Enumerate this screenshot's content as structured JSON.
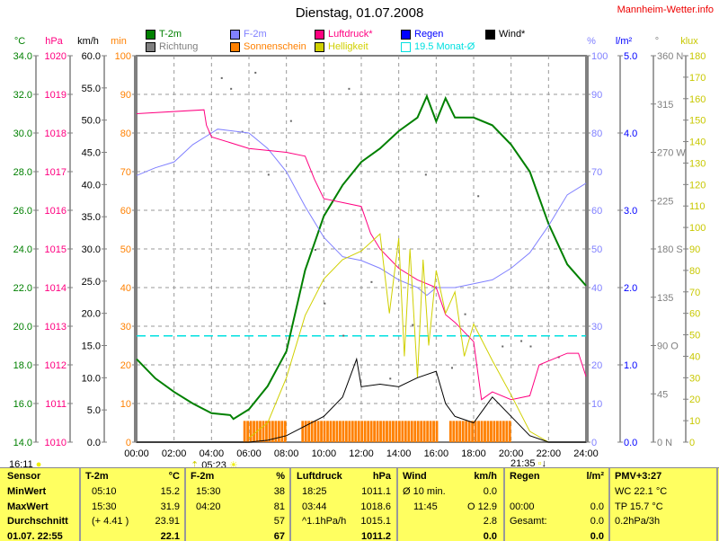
{
  "header": {
    "title": "Dienstag, 01.07.2008",
    "brand": "Mannheim-Wetter.info"
  },
  "legend": [
    {
      "label": "T-2m",
      "color": "#008000"
    },
    {
      "label": "F-2m",
      "color": "#8080ff"
    },
    {
      "label": "Luftdruck*",
      "color": "#ff0080"
    },
    {
      "label": "Regen",
      "color": "#0000ff"
    },
    {
      "label": "Wind*",
      "color": "#000000"
    },
    {
      "label": "Richtung",
      "color": "#808080"
    },
    {
      "label": "Sonnenschein",
      "color": "#ff8000"
    },
    {
      "label": "Helligkeit",
      "color": "#d0d000"
    },
    {
      "label": "19.5 Monat-Ø",
      "color": "#00e0e0"
    }
  ],
  "sun": {
    "left_time": "16:11",
    "sunrise": "05:23",
    "sunset": "21:35"
  },
  "chart_data": {
    "type": "line",
    "title": "Dienstag, 01.07.2008",
    "x_ticks": [
      "00:00",
      "02:00",
      "04:00",
      "06:00",
      "08:00",
      "10:00",
      "12:00",
      "14:00",
      "16:00",
      "18:00",
      "20:00",
      "22:00",
      "24:00"
    ],
    "axes": [
      {
        "unit": "°C",
        "ticks": [
          "34.0",
          "32.0",
          "30.0",
          "28.0",
          "26.0",
          "24.0",
          "22.0",
          "20.0",
          "18.0",
          "16.0",
          "14.0"
        ],
        "range": [
          14,
          34
        ],
        "color": "#008000"
      },
      {
        "unit": "hPa",
        "ticks": [
          "1020",
          "1019",
          "1018",
          "1017",
          "1016",
          "1015",
          "1014",
          "1013",
          "1012",
          "1011",
          "1010"
        ],
        "range": [
          1010,
          1020
        ],
        "color": "#ff0080"
      },
      {
        "unit": "km/h",
        "ticks": [
          "60.0",
          "55.0",
          "50.0",
          "45.0",
          "40.0",
          "35.0",
          "30.0",
          "25.0",
          "20.0",
          "15.0",
          "10.0",
          "5.0",
          "0.0"
        ],
        "range": [
          0,
          60
        ],
        "color": "#000000"
      },
      {
        "unit": "min",
        "ticks": [
          "100",
          "90",
          "80",
          "70",
          "60",
          "50",
          "40",
          "30",
          "20",
          "10",
          "0"
        ],
        "range": [
          0,
          100
        ],
        "color": "#ff8000"
      },
      {
        "unit": "%",
        "ticks": [
          "100",
          "90",
          "80",
          "70",
          "60",
          "50",
          "40",
          "30",
          "20",
          "10",
          "0"
        ],
        "range": [
          0,
          100
        ],
        "color": "#8080ff"
      },
      {
        "unit": "l/m²",
        "ticks": [
          "5.0",
          "4.0",
          "3.0",
          "2.0",
          "1.0",
          "0.0"
        ],
        "range": [
          0,
          5
        ],
        "color": "#0000ff"
      },
      {
        "unit": "°",
        "ticks": [
          "360 N",
          "315",
          "270 W",
          "225",
          "180 S",
          "135",
          "90  O",
          "45",
          "0    N"
        ],
        "range": [
          0,
          360
        ],
        "color": "#808080"
      },
      {
        "unit": "klux",
        "ticks": [
          "180",
          "170",
          "160",
          "150",
          "140",
          "130",
          "120",
          "110",
          "100",
          "90",
          "80",
          "70",
          "60",
          "50",
          "40",
          "30",
          "20",
          "10",
          "0"
        ],
        "range": [
          0,
          180
        ],
        "color": "#c8c800"
      }
    ],
    "series": [
      {
        "name": "T-2m",
        "axis": 0,
        "x": [
          0,
          1,
          2,
          3,
          4,
          5,
          5.17,
          6,
          7,
          8,
          9,
          10,
          11,
          12,
          13,
          14,
          15,
          15.5,
          16,
          16.5,
          17,
          18,
          19,
          20,
          21,
          22,
          23,
          24
        ],
        "y": [
          18.3,
          17.3,
          16.6,
          16.0,
          15.5,
          15.4,
          15.2,
          15.7,
          16.9,
          18.7,
          22.9,
          25.7,
          27.3,
          28.5,
          29.2,
          30.1,
          30.8,
          31.9,
          30.6,
          31.8,
          30.8,
          30.8,
          30.4,
          29.4,
          28.0,
          25.3,
          23.2,
          22.1
        ]
      },
      {
        "name": "F-2m",
        "axis": 4,
        "x": [
          0,
          1,
          2,
          3,
          4,
          4.33,
          6,
          7,
          8,
          9,
          10,
          11,
          12,
          13,
          14,
          15,
          15.5,
          16,
          17,
          18,
          19,
          20,
          21,
          22,
          23,
          24
        ],
        "y": [
          69,
          71,
          72.5,
          77,
          80,
          81,
          80,
          76,
          70,
          61,
          53,
          48,
          47,
          45,
          42,
          40,
          38,
          40,
          40,
          41,
          42,
          45,
          49,
          56,
          64,
          67
        ]
      },
      {
        "name": "Luftdruck*",
        "axis": 1,
        "x": [
          0,
          3.6,
          3.73,
          4,
          6,
          8,
          9,
          9.5,
          10,
          11,
          12,
          12.5,
          13,
          14,
          15,
          16,
          16.5,
          17,
          18,
          18.42,
          19,
          20,
          21,
          21.5,
          22,
          23,
          23.6,
          24
        ],
        "y": [
          1018.5,
          1018.6,
          1018.2,
          1017.9,
          1017.6,
          1017.5,
          1017.4,
          1016.8,
          1016.3,
          1016.2,
          1016.1,
          1015.4,
          1015.0,
          1014.5,
          1014.2,
          1014.0,
          1013.3,
          1013.1,
          1012.6,
          1011.1,
          1011.3,
          1011.1,
          1011.2,
          1012.0,
          1012.1,
          1012.3,
          1012.3,
          1011.7
        ]
      },
      {
        "name": "Helligkeit",
        "axis": 7,
        "x": [
          6,
          7,
          8,
          9,
          10,
          11,
          12,
          13,
          13.5,
          14,
          14.3,
          14.6,
          15,
          15.3,
          15.6,
          16,
          16.5,
          17,
          17.5,
          18,
          19,
          20,
          21,
          22,
          24
        ],
        "y": [
          2,
          9,
          30,
          59,
          76,
          85,
          89,
          97,
          60,
          95,
          40,
          90,
          30,
          85,
          45,
          80,
          60,
          70,
          40,
          55,
          38,
          22,
          5,
          0,
          0
        ]
      },
      {
        "name": "Wind*",
        "axis": 2,
        "x": [
          0,
          6,
          7,
          8,
          9,
          10,
          11,
          11.75,
          12,
          13,
          14,
          15,
          16,
          16.5,
          17,
          18,
          19,
          20,
          21,
          22,
          24
        ],
        "y": [
          0,
          0,
          0.3,
          1,
          2.5,
          4,
          7,
          12.9,
          8.6,
          9,
          8.6,
          10,
          11,
          6,
          4,
          3,
          7,
          4,
          1,
          0,
          0
        ]
      }
    ],
    "sunshine_intervals": [
      [
        5.7,
        8.0
      ],
      [
        8.8,
        16.0
      ],
      [
        16.7,
        20.0
      ]
    ],
    "sunshine_value": 5.5,
    "direction_points": [
      [
        4.5,
        340
      ],
      [
        5.0,
        330
      ],
      [
        5.6,
        290
      ],
      [
        6.3,
        345
      ],
      [
        7,
        250
      ],
      [
        8.2,
        300
      ],
      [
        9.5,
        180
      ],
      [
        10,
        130
      ],
      [
        11,
        100
      ],
      [
        11.3,
        330
      ],
      [
        12.5,
        150
      ],
      [
        13.5,
        60
      ],
      [
        14.7,
        110
      ],
      [
        15.4,
        250
      ],
      [
        16.8,
        70
      ],
      [
        17.5,
        120
      ],
      [
        18.2,
        230
      ],
      [
        19.5,
        90
      ],
      [
        20.5,
        95
      ],
      [
        21,
        90
      ],
      [
        22.5,
        80
      ]
    ],
    "monthly_average": 19.5,
    "ylim_temp": [
      14,
      34
    ]
  },
  "table": {
    "headers": [
      [
        "Sensor",
        ""
      ],
      [
        "T-2m",
        "°C"
      ],
      [
        "F-2m",
        "%"
      ],
      [
        "Luftdruck",
        "hPa"
      ],
      [
        "Wind",
        "km/h"
      ],
      [
        "Regen",
        "l/m²"
      ],
      [
        "PMV+3:27",
        ""
      ]
    ],
    "rows": [
      [
        "MinWert",
        "05:10",
        "15.2",
        "15:30",
        "38",
        "18:25",
        "1011.1",
        "Ø 10 min.",
        "0.0",
        "",
        "",
        "WC 22.1 °C"
      ],
      [
        "MaxWert",
        "15:30",
        "31.9",
        "04:20",
        "81",
        "03:44",
        "1018.6",
        "11:45",
        "O 12.9",
        "00:00",
        "0.0",
        "TP 15.7 °C"
      ],
      [
        "Durchschnitt",
        "(+ 4.41 )",
        "23.91",
        "",
        "57",
        "^1.1hPa/h",
        "1015.1",
        "",
        "2.8",
        "Gesamt:",
        "0.0",
        "0.2hPa/3h"
      ],
      [
        "01.07. 22:55",
        "",
        "22.1",
        "",
        "67",
        "",
        "1011.2",
        "",
        "0.0",
        "",
        "0.0",
        ""
      ]
    ]
  }
}
